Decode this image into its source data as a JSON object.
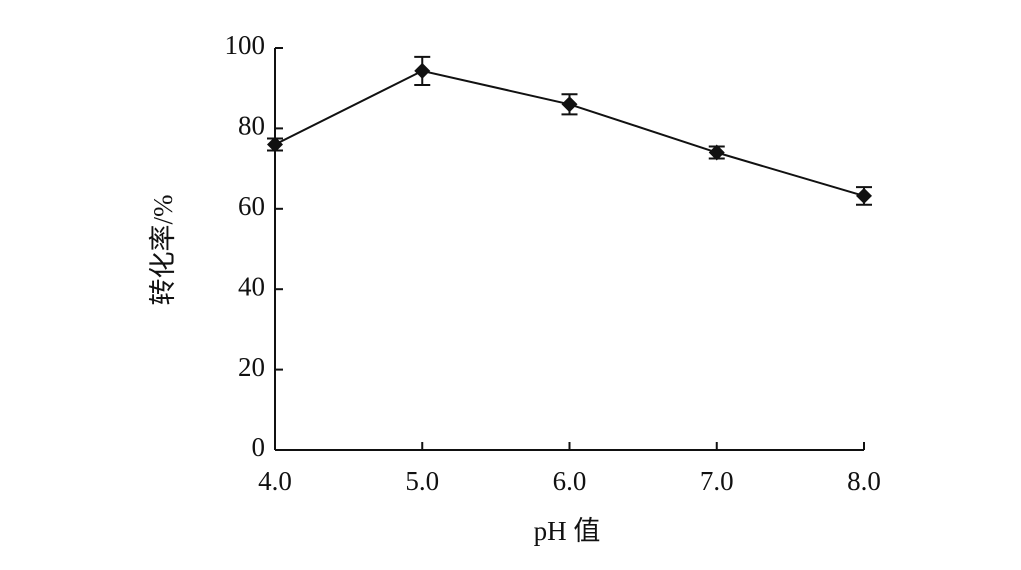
{
  "chart_data": {
    "type": "line",
    "x_label": "pH 值",
    "y_label": "转化率/%",
    "x": [
      4,
      5,
      6,
      7,
      8
    ],
    "values": [
      76,
      94.3,
      86,
      74,
      63.2
    ],
    "errors": [
      1.5,
      3.5,
      2.5,
      1.5,
      2.2
    ],
    "color": "#111111",
    "xlim": [
      4,
      8
    ],
    "xticks": [
      {
        "value": 4,
        "label": "4.0"
      },
      {
        "value": 5,
        "label": "5.0"
      },
      {
        "value": 6,
        "label": "6.0"
      },
      {
        "value": 7,
        "label": "7.0"
      },
      {
        "value": 8,
        "label": "8.0"
      }
    ],
    "ylim": [
      0,
      100
    ],
    "yticks": [
      0,
      20,
      40,
      60,
      80,
      100
    ],
    "grid": false
  }
}
